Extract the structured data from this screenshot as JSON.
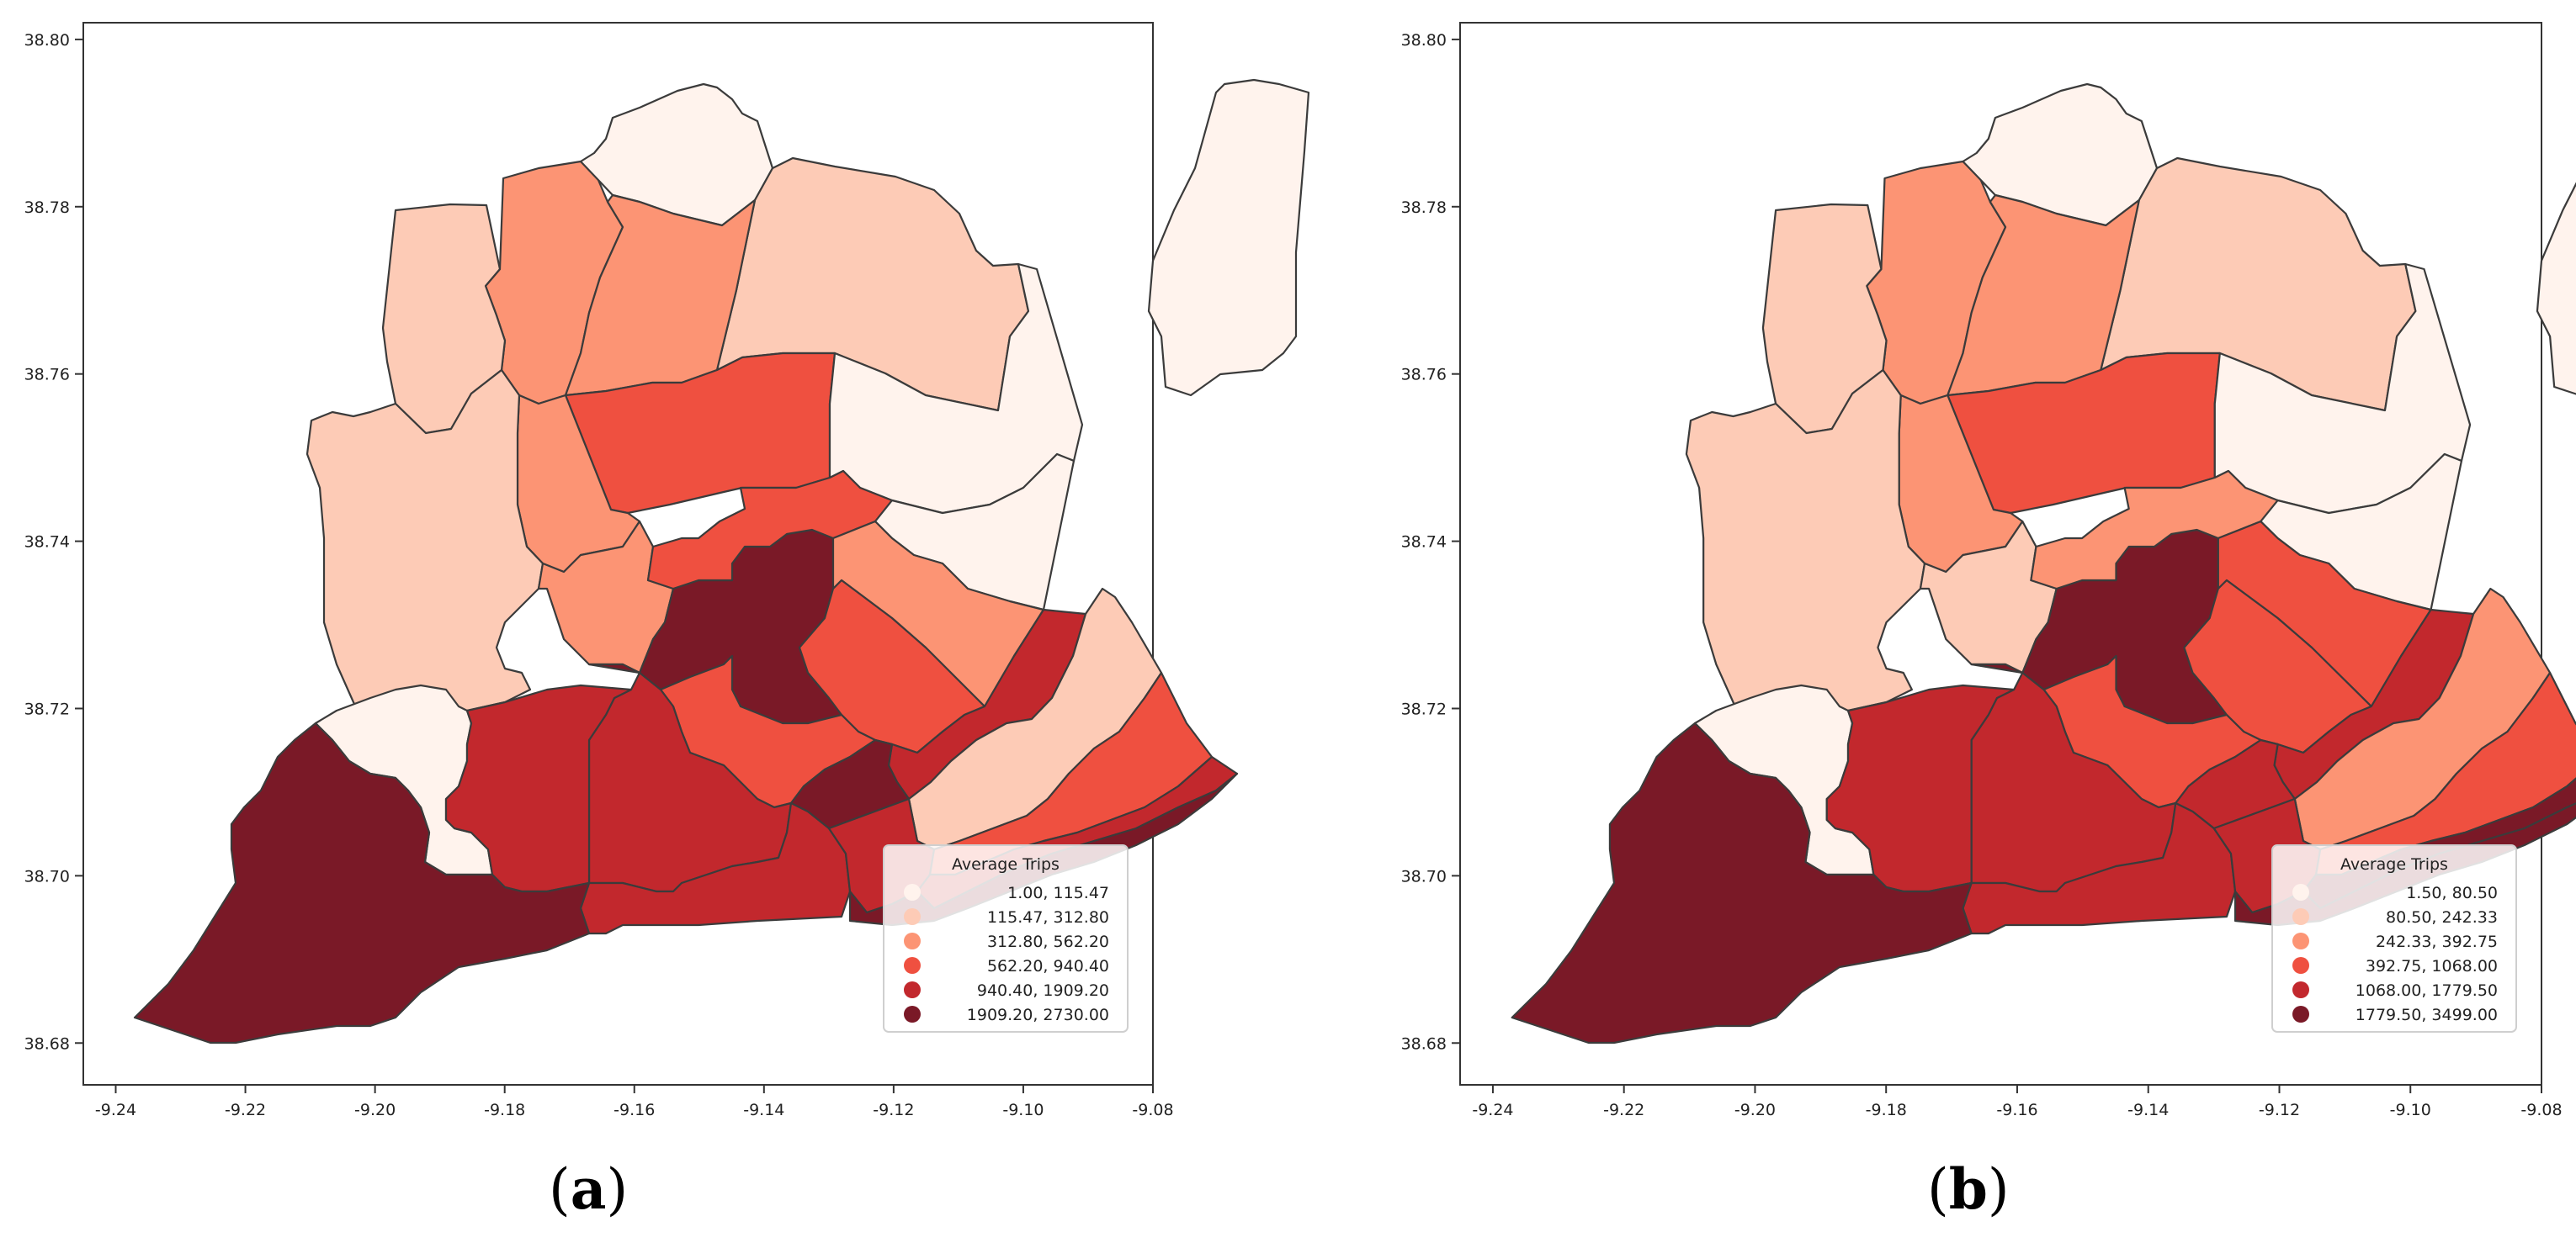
{
  "figure": {
    "colors": [
      "#fff3ed",
      "#fdcbb6",
      "#fc9474",
      "#ef5040",
      "#c2282d",
      "#7a1927"
    ],
    "panels": [
      {
        "label_open": "(",
        "label_letter": "a",
        "label_close": ")",
        "legend_title": "Average Trips",
        "legend_items": [
          "1.00,   115.47",
          "115.47,   312.80",
          "312.80,   562.20",
          "562.20,   940.40",
          "940.40, 1909.20",
          "1909.20, 2730.00"
        ],
        "region_classes": [
          2,
          1,
          0,
          1,
          2,
          3,
          0,
          2,
          1,
          2,
          5,
          3,
          0,
          2,
          3,
          3,
          4,
          5,
          4,
          0,
          4,
          4,
          5,
          1,
          4,
          3,
          4,
          5,
          0
        ]
      },
      {
        "label_open": "(",
        "label_letter": "b",
        "label_close": ")",
        "legend_title": "Average Trips",
        "legend_items": [
          "1.50,    80.50",
          "80.50,   242.33",
          "242.33,   392.75",
          "392.75, 1068.00",
          "1068.00, 1779.50",
          "1779.50, 3499.00"
        ],
        "region_classes": [
          2,
          1,
          0,
          1,
          2,
          3,
          0,
          2,
          1,
          1,
          5,
          2,
          0,
          3,
          3,
          3,
          4,
          4,
          4,
          0,
          4,
          4,
          5,
          2,
          4,
          3,
          5,
          5,
          0
        ]
      }
    ]
  },
  "chart_data": {
    "type": "map",
    "subject": "Average Trips per parish (choropleth)",
    "x_axis": {
      "range": [
        -9.245,
        -9.08
      ],
      "ticks": [
        "-9.24",
        "-9.22",
        "-9.20",
        "-9.18",
        "-9.16",
        "-9.14",
        "-9.12",
        "-9.10",
        "-9.08"
      ]
    },
    "y_axis": {
      "range": [
        38.675,
        38.802
      ],
      "ticks": [
        "38.68",
        "38.70",
        "38.72",
        "38.74",
        "38.76",
        "38.78",
        "38.80"
      ]
    }
  }
}
